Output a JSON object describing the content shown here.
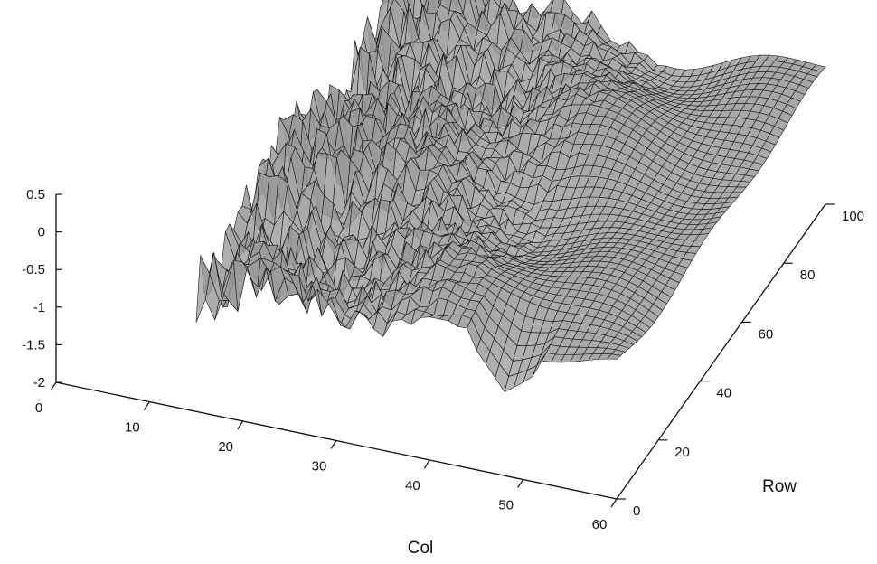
{
  "chart_data": {
    "type": "surface",
    "title": "",
    "xlabel": "Col",
    "ylabel": "Row",
    "zlabel": "",
    "x_ticks": [
      0,
      10,
      20,
      30,
      40,
      50,
      60
    ],
    "y_ticks": [
      0,
      20,
      40,
      60,
      80,
      100
    ],
    "z_ticks": [
      -2,
      -1.5,
      -1,
      -0.5,
      0,
      0.5
    ],
    "x_tick_labels": [
      "0",
      "10",
      "20",
      "30",
      "40",
      "50",
      "60"
    ],
    "y_tick_labels": [
      "0",
      "20",
      "40",
      "60",
      "80",
      "100"
    ],
    "z_tick_labels": [
      "-2",
      "-1.5",
      "-1",
      "-0.5",
      "0",
      "0.5"
    ],
    "xlim": [
      0,
      60
    ],
    "ylim": [
      0,
      100
    ],
    "zlim": [
      -2,
      0.5
    ],
    "surface": {
      "description_values": {
        "col_range": [
          15,
          60
        ],
        "row_range": [
          0,
          100
        ],
        "z_typical_range": [
          -0.8,
          0.3
        ],
        "z_min_observed": -1.9
      }
    },
    "grid": false,
    "colors": {
      "mesh_fill": "#9c9c9c",
      "mesh_line": "#1a1a1a"
    }
  }
}
